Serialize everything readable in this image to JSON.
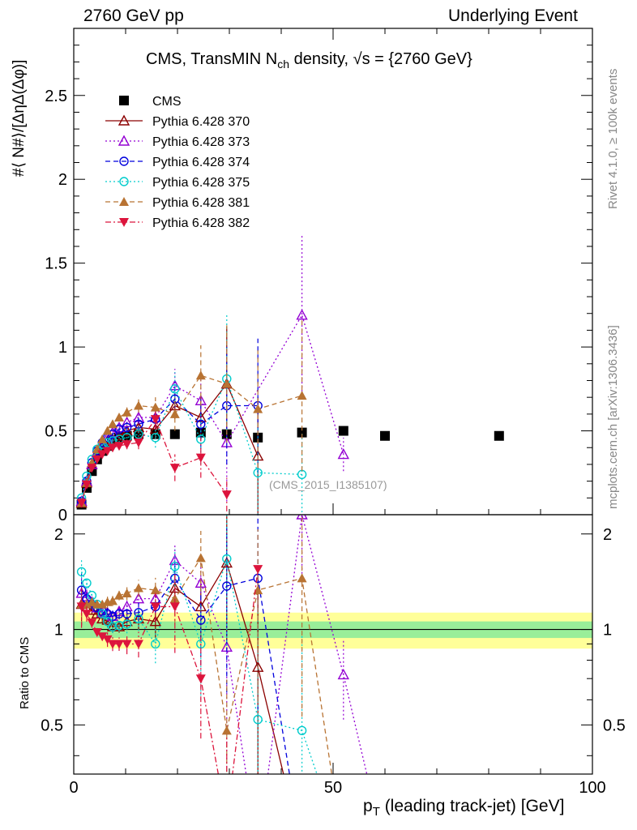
{
  "header": {
    "left": "2760 GeV pp",
    "right": "Underlying Event"
  },
  "plot_title": {
    "prefix": "CMS, TransMIN N",
    "sub": "ch",
    "suffix": " density, √s = {2760 GeV}"
  },
  "side_labels": {
    "rivet": "Rivet 4.1.0, ≥ 100k events",
    "mcplots": "mcplots.cern.ch [arXiv:1306.3436]"
  },
  "analysis_tag": "(CMS_2015_I1385107)",
  "y_label_top": "#⟨ N#⟩/[ΔηΔ(Δφ)]",
  "y_label_bottom": "Ratio to CMS",
  "x_label": {
    "main": "p",
    "sub": "T",
    "rest": " (leading track-jet) [GeV]"
  },
  "axes": {
    "x_ticks": [
      "0",
      "50",
      "100"
    ],
    "y_ticks_top": [
      "0",
      "0.5",
      "1",
      "1.5",
      "2",
      "2.5"
    ],
    "y_ticks_bottom": [
      "0.5",
      "1",
      "2"
    ]
  },
  "chart_data": {
    "type": "line",
    "title": "CMS, TransMIN Nch density, √s = {2760 GeV}",
    "xlabel": "pT (leading track-jet) [GeV]",
    "ylabel": "#⟨ N#⟩/[ΔηΔ(Δφ)]",
    "xlim": [
      0,
      100
    ],
    "ylim": [
      0,
      2.9
    ],
    "ratio_ylim": [
      0.35,
      2.3
    ],
    "legend_position": "top-left",
    "x": [
      1.5,
      2.5,
      3.5,
      4.5,
      5.5,
      6.5,
      7.5,
      8.75,
      10.25,
      12.5,
      15.75,
      19.5,
      24.5,
      29.5,
      35.5,
      44,
      52,
      60,
      82
    ],
    "series": [
      {
        "name": "CMS",
        "color": "#000000",
        "marker": "square",
        "dash": "none",
        "values": [
          0.06,
          0.16,
          0.26,
          0.33,
          0.38,
          0.41,
          0.44,
          0.46,
          0.47,
          0.48,
          0.48,
          0.48,
          0.49,
          0.48,
          0.46,
          0.49,
          0.5,
          0.47,
          0.47
        ],
        "errors": [
          0,
          0,
          0,
          0,
          0,
          0,
          0,
          0,
          0,
          0,
          0,
          0,
          0,
          0,
          0,
          0,
          0,
          0,
          0
        ]
      },
      {
        "name": "Pythia 6.428 370",
        "color": "#8b0000",
        "marker": "triangle-open",
        "dash": "none",
        "values": [
          0.07,
          0.19,
          0.3,
          0.37,
          0.41,
          0.44,
          0.45,
          0.47,
          0.5,
          0.52,
          0.51,
          0.65,
          0.58,
          0.78,
          0.35,
          null,
          null,
          null,
          null
        ],
        "errors": [
          0.01,
          0.01,
          0.01,
          0.01,
          0.01,
          0.02,
          0.02,
          0.02,
          0.03,
          0.04,
          0.06,
          0.08,
          0.12,
          0.34,
          0.35,
          null,
          null,
          null,
          null
        ],
        "ratio": [
          1.2,
          1.18,
          1.15,
          1.12,
          1.08,
          1.07,
          1.02,
          1.02,
          1.06,
          1.08,
          1.06,
          1.35,
          1.18,
          1.62,
          0.76,
          0.0,
          null,
          null,
          null
        ]
      },
      {
        "name": "Pythia 6.428 373",
        "color": "#9400d3",
        "marker": "triangle-open",
        "dash": "dot",
        "values": [
          0.08,
          0.2,
          0.3,
          0.37,
          0.42,
          0.46,
          0.49,
          0.52,
          0.55,
          0.58,
          0.58,
          0.77,
          0.68,
          0.43,
          null,
          1.19,
          0.36,
          null,
          null
        ],
        "errors": [
          0.01,
          0.01,
          0.01,
          0.01,
          0.01,
          0.02,
          0.02,
          0.02,
          0.03,
          0.04,
          0.06,
          0.1,
          0.15,
          0.35,
          null,
          0.48,
          0.1,
          null,
          null
        ],
        "ratio": [
          1.3,
          1.27,
          1.22,
          1.17,
          1.13,
          1.13,
          1.1,
          1.14,
          1.18,
          1.25,
          1.25,
          1.65,
          1.4,
          0.88,
          0.0,
          2.3,
          0.72,
          0.0,
          null
        ]
      },
      {
        "name": "Pythia 6.428 374",
        "color": "#0000dd",
        "marker": "circle-open",
        "dash": "dash",
        "values": [
          0.08,
          0.2,
          0.31,
          0.38,
          0.43,
          0.46,
          0.48,
          0.51,
          0.52,
          0.54,
          0.57,
          0.69,
          0.54,
          0.65,
          0.65,
          null,
          null,
          null,
          null
        ],
        "errors": [
          0.01,
          0.01,
          0.01,
          0.01,
          0.01,
          0.02,
          0.02,
          0.02,
          0.03,
          0.04,
          0.06,
          0.1,
          0.15,
          0.35,
          0.4,
          null,
          null,
          null,
          null
        ],
        "ratio": [
          1.33,
          1.25,
          1.2,
          1.17,
          1.14,
          1.12,
          1.1,
          1.12,
          1.12,
          1.13,
          1.18,
          1.45,
          1.07,
          1.37,
          1.45,
          0.0,
          null,
          null,
          null
        ]
      },
      {
        "name": "Pythia 6.428 375",
        "color": "#00cccc",
        "marker": "circle-open",
        "dash": "dot",
        "values": [
          0.1,
          0.23,
          0.33,
          0.39,
          0.42,
          0.43,
          0.44,
          0.45,
          0.46,
          0.48,
          0.46,
          0.75,
          0.45,
          0.81,
          0.25,
          0.24,
          null,
          null,
          null
        ],
        "errors": [
          0.01,
          0.01,
          0.01,
          0.01,
          0.01,
          0.02,
          0.02,
          0.02,
          0.03,
          0.04,
          0.06,
          0.1,
          0.15,
          0.38,
          0.3,
          0.25,
          null,
          null,
          null
        ],
        "ratio": [
          1.52,
          1.4,
          1.28,
          1.2,
          1.12,
          1.06,
          1.02,
          1.03,
          1.04,
          1.08,
          0.9,
          1.58,
          0.9,
          1.67,
          0.52,
          0.48,
          0.0,
          null,
          null
        ]
      },
      {
        "name": "Pythia 6.428 381",
        "color": "#b87333",
        "marker": "triangle-filled",
        "dash": "dash",
        "values": [
          0.07,
          0.19,
          0.31,
          0.39,
          0.45,
          0.5,
          0.54,
          0.58,
          0.61,
          0.65,
          0.64,
          0.6,
          0.83,
          0.78,
          0.63,
          0.71,
          null,
          null,
          null
        ],
        "errors": [
          0.01,
          0.01,
          0.01,
          0.01,
          0.01,
          0.02,
          0.02,
          0.02,
          0.03,
          0.04,
          0.06,
          0.1,
          0.18,
          0.35,
          0.35,
          0.45,
          null,
          null,
          null
        ],
        "ratio": [
          1.2,
          1.2,
          1.22,
          1.2,
          1.2,
          1.22,
          1.23,
          1.28,
          1.3,
          1.35,
          1.33,
          1.25,
          1.68,
          0.48,
          1.33,
          1.45,
          0.0,
          null,
          null
        ]
      },
      {
        "name": "Pythia 6.428 382",
        "color": "#dc143c",
        "marker": "triangle-down-filled",
        "dash": "dashdot",
        "values": [
          0.07,
          0.18,
          0.28,
          0.33,
          0.36,
          0.38,
          0.4,
          0.41,
          0.42,
          0.43,
          0.57,
          0.28,
          0.34,
          0.12,
          null,
          null,
          null,
          null,
          null
        ],
        "errors": [
          0.01,
          0.01,
          0.01,
          0.01,
          0.01,
          0.02,
          0.02,
          0.02,
          0.03,
          0.04,
          0.06,
          0.08,
          0.12,
          0.1,
          null,
          null,
          null,
          null,
          null
        ],
        "ratio": [
          1.18,
          1.12,
          1.05,
          0.98,
          0.95,
          0.93,
          0.9,
          0.9,
          0.9,
          0.9,
          1.18,
          1.18,
          0.7,
          0.25,
          1.55,
          null,
          null,
          null,
          null
        ]
      }
    ]
  }
}
